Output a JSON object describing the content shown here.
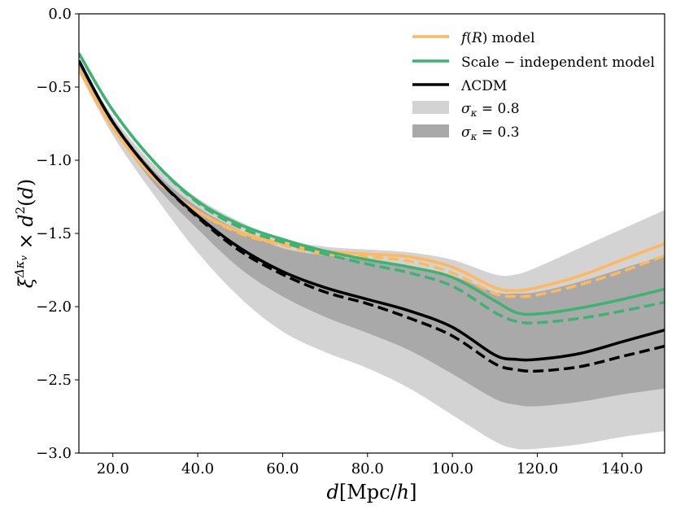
{
  "chart_data": {
    "type": "line",
    "title": "",
    "xlabel": "d[Mpc/h]",
    "ylabel": "ξ^{Δκ_v} × d²(d)",
    "xlim": [
      12,
      150
    ],
    "ylim": [
      -3.0,
      0.0
    ],
    "grid": false,
    "legend_position": "top-right",
    "xticks": [
      20,
      40,
      60,
      80,
      100,
      120,
      140
    ],
    "xtick_labels": [
      "20.0",
      "40.0",
      "60.0",
      "80.0",
      "100.0",
      "120.0",
      "140.0"
    ],
    "yticks": [
      0,
      -0.5,
      -1.0,
      -1.5,
      -2.0,
      -2.5,
      -3.0
    ],
    "ytick_labels": [
      "0.0",
      "−0.5",
      "−1.0",
      "−1.5",
      "−2.0",
      "−2.5",
      "−3.0"
    ],
    "x": [
      12,
      20,
      30,
      40,
      50,
      60,
      70,
      80,
      90,
      100,
      110,
      115,
      120,
      130,
      140,
      150
    ],
    "series": [
      {
        "name": "f(R) model",
        "color": "#ffb85c",
        "style": "solid",
        "values": [
          -0.38,
          -0.78,
          -1.13,
          -1.35,
          -1.49,
          -1.57,
          -1.62,
          -1.64,
          -1.66,
          -1.73,
          -1.87,
          -1.89,
          -1.87,
          -1.79,
          -1.68,
          -1.57
        ]
      },
      {
        "name": "f(R) model (dashed)",
        "color": "#ffb85c",
        "style": "dashed",
        "legend": false,
        "values": [
          -0.38,
          -0.78,
          -1.13,
          -1.35,
          -1.5,
          -1.58,
          -1.64,
          -1.66,
          -1.69,
          -1.77,
          -1.91,
          -1.93,
          -1.92,
          -1.85,
          -1.76,
          -1.65
        ]
      },
      {
        "name": "Scale − independent model",
        "color": "#3cb371",
        "style": "solid",
        "values": [
          -0.27,
          -0.66,
          -1.02,
          -1.28,
          -1.44,
          -1.54,
          -1.62,
          -1.68,
          -1.73,
          -1.8,
          -1.96,
          -2.04,
          -2.05,
          -2.01,
          -1.95,
          -1.88
        ]
      },
      {
        "name": "Scale − independent model (dashed)",
        "color": "#3cb371",
        "style": "dashed",
        "legend": false,
        "values": [
          -0.27,
          -0.66,
          -1.02,
          -1.29,
          -1.46,
          -1.56,
          -1.64,
          -1.71,
          -1.77,
          -1.86,
          -2.04,
          -2.1,
          -2.11,
          -2.08,
          -2.03,
          -1.97
        ]
      },
      {
        "name": "ΛCDM",
        "color": "#000000",
        "style": "solid",
        "values": [
          -0.32,
          -0.74,
          -1.11,
          -1.38,
          -1.6,
          -1.76,
          -1.87,
          -1.95,
          -2.03,
          -2.14,
          -2.33,
          -2.36,
          -2.36,
          -2.32,
          -2.24,
          -2.16
        ]
      },
      {
        "name": "ΛCDM (dashed)",
        "color": "#000000",
        "style": "dashed",
        "legend": false,
        "values": [
          -0.32,
          -0.74,
          -1.11,
          -1.39,
          -1.62,
          -1.78,
          -1.9,
          -1.98,
          -2.08,
          -2.2,
          -2.39,
          -2.43,
          -2.44,
          -2.41,
          -2.34,
          -2.27
        ]
      }
    ],
    "bands": [
      {
        "name": "σ_κ = 0.8",
        "color": "#d3d3d3",
        "upper": [
          -0.32,
          -0.7,
          -1.04,
          -1.26,
          -1.42,
          -1.54,
          -1.59,
          -1.61,
          -1.63,
          -1.68,
          -1.78,
          -1.78,
          -1.73,
          -1.6,
          -1.47,
          -1.34
        ],
        "lower": [
          -0.4,
          -0.83,
          -1.25,
          -1.63,
          -1.94,
          -2.17,
          -2.31,
          -2.42,
          -2.56,
          -2.74,
          -2.92,
          -2.97,
          -2.97,
          -2.94,
          -2.89,
          -2.85
        ]
      },
      {
        "name": "σ_κ = 0.3",
        "color": "#a9a9a9",
        "upper": [
          -0.34,
          -0.72,
          -1.08,
          -1.32,
          -1.48,
          -1.6,
          -1.65,
          -1.68,
          -1.72,
          -1.79,
          -1.9,
          -1.91,
          -1.9,
          -1.83,
          -1.74,
          -1.65
        ],
        "lower": [
          -0.36,
          -0.78,
          -1.17,
          -1.47,
          -1.74,
          -1.93,
          -2.07,
          -2.18,
          -2.3,
          -2.46,
          -2.63,
          -2.67,
          -2.68,
          -2.65,
          -2.6,
          -2.56
        ]
      }
    ],
    "legend": [
      {
        "kind": "line",
        "color": "#ffb85c",
        "label": "f(R) model"
      },
      {
        "kind": "line",
        "color": "#3cb371",
        "label": "Scale − independent model"
      },
      {
        "kind": "line",
        "color": "#000000",
        "label": "ΛCDM"
      },
      {
        "kind": "patch",
        "color": "#d3d3d3",
        "label": "σ_κ = 0.8"
      },
      {
        "kind": "patch",
        "color": "#a9a9a9",
        "label": "σ_κ = 0.3"
      }
    ]
  }
}
